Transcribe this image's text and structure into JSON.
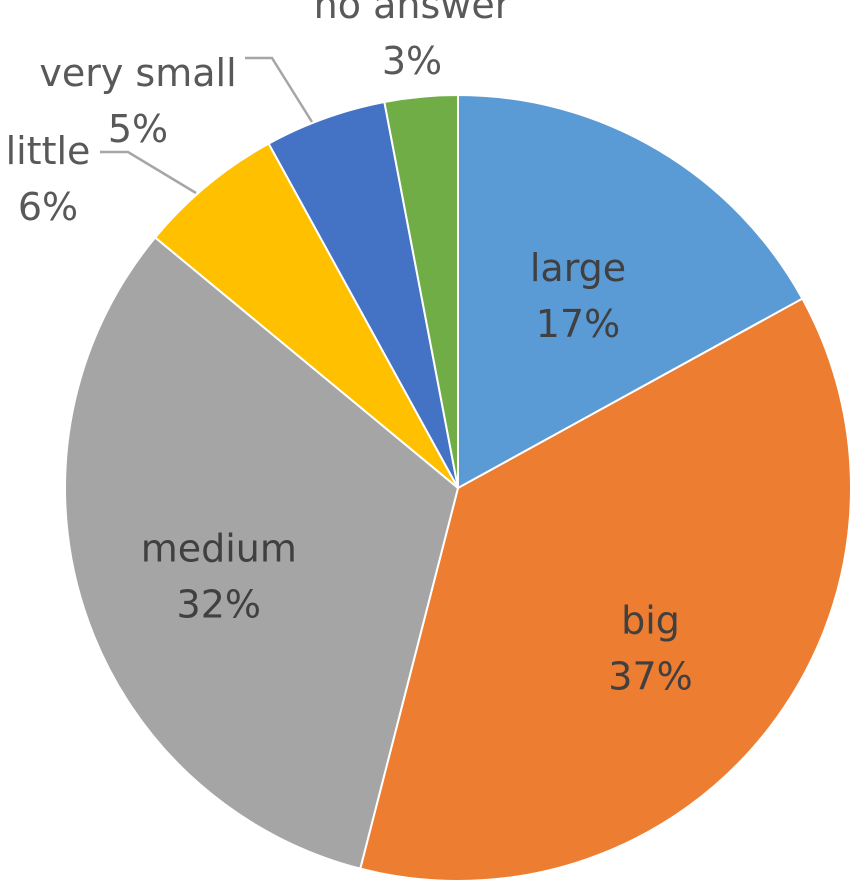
{
  "chart_data": {
    "type": "pie",
    "title": "",
    "start_angle_deg": 0,
    "direction": "clockwise",
    "slices": [
      {
        "label": "large",
        "value": 17,
        "display": "17%",
        "color": "#5B9BD5"
      },
      {
        "label": "big",
        "value": 37,
        "display": "37%",
        "color": "#ED7D31"
      },
      {
        "label": "medium",
        "value": 32,
        "display": "32%",
        "color": "#A5A5A5"
      },
      {
        "label": "little",
        "value": 6,
        "display": "6%",
        "color": "#FFC000"
      },
      {
        "label": "very small",
        "value": 5,
        "display": "5%",
        "color": "#4472C4"
      },
      {
        "label": "no answer",
        "value": 3,
        "display": "3%",
        "color": "#70AD47"
      }
    ]
  }
}
